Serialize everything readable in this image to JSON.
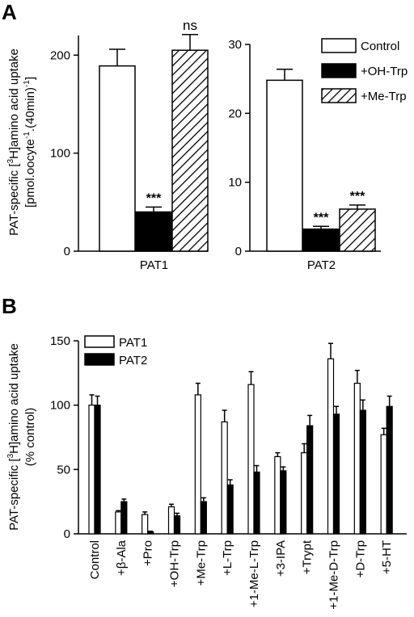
{
  "chart_data": [
    {
      "panel": "A",
      "type": "bar",
      "ylabel_line1": "PAT-specific [",
      "ylabel_sup": "3",
      "ylabel_line1b": "H]amino acid uptake",
      "ylabel_line2": "[pmol.oocyte",
      "ylabel_line2_sup1": "-1",
      "ylabel_line2b": ".(40min)",
      "ylabel_line2_sup2": "-1",
      "ylabel_line2c": "]",
      "legend": [
        "Control",
        "+OH-Trp",
        "+Me-Trp"
      ],
      "subplots": [
        {
          "category": "PAT1",
          "ylim": [
            0,
            220
          ],
          "yticks": [
            "0",
            "100",
            "200"
          ],
          "values": [
            189,
            40,
            205
          ],
          "errors": [
            17,
            5,
            16
          ],
          "annotations": [
            "",
            "***",
            "ns"
          ]
        },
        {
          "category": "PAT2",
          "ylim": [
            0,
            30
          ],
          "yticks": [
            "0",
            "10",
            "20",
            "30"
          ],
          "values": [
            24.8,
            3.2,
            6.1
          ],
          "errors": [
            1.6,
            0.4,
            0.6
          ],
          "annotations": [
            "",
            "***",
            "***"
          ]
        }
      ]
    },
    {
      "panel": "B",
      "type": "bar",
      "ylabel_line1a": "PAT-specific [",
      "ylabel_sup": "3",
      "ylabel_line1b": "H]amino acid uptake",
      "ylabel_line2": "(% control)",
      "ylim": [
        0,
        150
      ],
      "yticks": [
        "0",
        "50",
        "100",
        "150"
      ],
      "categories": [
        "Control",
        "+β-Ala",
        "+Pro",
        "+OH-Trp",
        "+Me-Trp",
        "+L-Trp",
        "+1-Me-L-Trp",
        "+3-IPA",
        "+Trypt",
        "+1-Me-D-Trp",
        "+D-Trp",
        "+5-HT"
      ],
      "series": [
        {
          "name": "PAT1",
          "values": [
            100,
            17,
            15,
            21,
            108,
            87,
            116,
            60,
            63,
            136,
            117,
            77
          ],
          "errors": [
            8,
            1,
            2,
            2,
            9,
            9,
            10,
            3,
            7,
            12,
            10,
            5
          ]
        },
        {
          "name": "PAT2",
          "values": [
            100,
            25,
            1.5,
            14,
            25,
            38,
            48,
            49,
            84,
            93,
            96,
            99
          ],
          "errors": [
            7,
            2,
            0.5,
            2,
            3,
            4,
            5,
            3,
            8,
            6,
            8,
            8
          ]
        }
      ]
    }
  ]
}
